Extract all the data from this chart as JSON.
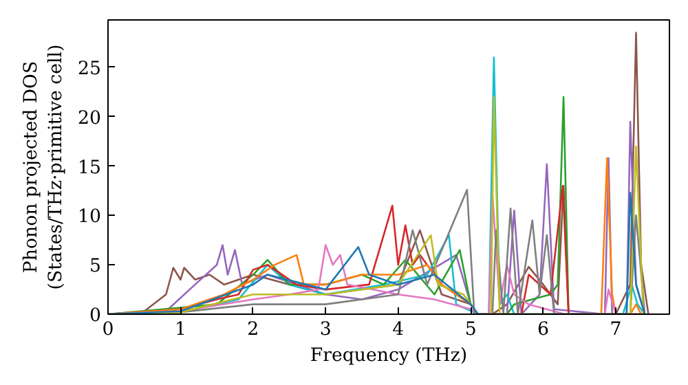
{
  "chart_data": {
    "type": "line",
    "xlabel": "Frequency (THz)",
    "ylabel": "Phonon projected DOS\n(States/THz·primitive cell)",
    "xlim": [
      0,
      7.74
    ],
    "ylim": [
      0,
      29.8
    ],
    "xticks": [
      0,
      1,
      2,
      3,
      4,
      5,
      6,
      7
    ],
    "yticks": [
      0,
      5,
      10,
      15,
      20,
      25
    ],
    "grid": false,
    "series": [
      {
        "color": "#8c564b",
        "x": [
          0,
          0.5,
          0.8,
          0.9,
          1.0,
          1.05,
          1.2,
          1.4,
          1.6,
          2,
          3,
          4,
          4.3,
          4.6,
          5,
          5.1,
          5.3,
          5.5,
          5.8,
          6.0,
          6.2,
          6.28,
          6.35,
          7.0,
          7.2,
          7.28,
          7.35,
          7.45
        ],
        "values": [
          0,
          0.3,
          2,
          4.7,
          3.5,
          4.7,
          3.5,
          4,
          3,
          4,
          2,
          3,
          8.5,
          2,
          1,
          0,
          0,
          1,
          4.8,
          3,
          1,
          13,
          0,
          0,
          3,
          28.5,
          5,
          0
        ]
      },
      {
        "color": "#9467bd",
        "x": [
          0,
          0.8,
          1.2,
          1.5,
          1.58,
          1.65,
          1.75,
          1.85,
          2.2,
          3,
          3.5,
          4,
          4.8,
          5.0,
          5.1,
          5.5,
          5.6,
          5.7,
          5.95,
          6.05,
          6.15,
          6.85,
          6.9,
          6.95,
          7.15,
          7.2,
          7.28,
          7.4
        ],
        "values": [
          0,
          0.3,
          3,
          5,
          7,
          4,
          6.5,
          3,
          4,
          2,
          1.5,
          2.5,
          6,
          1,
          0,
          0,
          10.5,
          0,
          2,
          15.2,
          0.5,
          0,
          15.8,
          0,
          0,
          19.5,
          3,
          0
        ]
      },
      {
        "color": "#17becf",
        "x": [
          0,
          1,
          1.8,
          2.2,
          2.5,
          3,
          3.8,
          4.4,
          4.7,
          4.8,
          5.1,
          5.25,
          5.32,
          5.4,
          5.5,
          5.6,
          7.1,
          7.22,
          7.3,
          7.4
        ],
        "values": [
          0,
          0.2,
          1.5,
          5,
          3,
          2,
          3,
          4,
          8,
          1,
          0,
          0,
          26,
          1,
          2,
          0,
          0,
          3,
          1,
          0
        ]
      },
      {
        "color": "#2ca02c",
        "x": [
          0,
          1.5,
          2,
          2.2,
          2.5,
          3,
          3.5,
          3.8,
          4.1,
          4.5,
          4.85,
          5.0,
          5.1,
          5.5,
          5.6,
          6.1,
          6.2,
          6.28,
          6.35,
          7.4
        ],
        "values": [
          0,
          1,
          4,
          5.5,
          3,
          3,
          4,
          3,
          5.5,
          2,
          6.5,
          1,
          0,
          0,
          1,
          2,
          3,
          22,
          0,
          0
        ]
      },
      {
        "color": "#d62728",
        "x": [
          0,
          1,
          1.5,
          1.8,
          2,
          2.2,
          2.6,
          3,
          3.6,
          3.92,
          4.0,
          4.1,
          4.2,
          4.3,
          4.6,
          5.0,
          5.1,
          5.7,
          5.8,
          6.1,
          6.27,
          6.35,
          7.4
        ],
        "values": [
          0,
          0.5,
          1.5,
          2,
          4.5,
          5,
          3,
          2.5,
          3,
          11,
          5,
          9,
          5,
          6,
          3,
          1,
          0,
          0,
          4,
          2,
          13,
          0,
          0
        ]
      },
      {
        "color": "#ff7f0e",
        "x": [
          0,
          1,
          1.6,
          2.0,
          2.3,
          2.6,
          2.7,
          3,
          3.5,
          4.0,
          4.4,
          4.6,
          5.0,
          5.1,
          6.8,
          6.88,
          6.95,
          7.0,
          7.2,
          7.28,
          7.35
        ],
        "values": [
          0,
          0.5,
          2,
          3.5,
          5,
          6,
          3,
          3,
          4,
          4,
          5,
          3,
          1,
          0,
          0,
          15.8,
          2,
          0,
          0,
          1,
          0
        ]
      },
      {
        "color": "#e377c2",
        "x": [
          0,
          1,
          2,
          2.5,
          2.9,
          3.0,
          3.1,
          3.2,
          3.3,
          4,
          4.5,
          5.0,
          5.1,
          5.25,
          5.3,
          5.4,
          5.5,
          5.6,
          5.8,
          6.3,
          6.85,
          6.9,
          7.0,
          7.4
        ],
        "values": [
          0,
          0.3,
          1.5,
          2,
          2.5,
          7,
          5,
          6,
          3,
          2,
          1.5,
          0.5,
          0,
          0,
          12.2,
          1,
          5,
          2,
          1,
          0,
          0,
          2.5,
          0,
          0
        ]
      },
      {
        "color": "#7f7f7f",
        "x": [
          0,
          1,
          2,
          3,
          4,
          4.2,
          4.4,
          4.95,
          5.05,
          5.3,
          5.35,
          5.45,
          5.55,
          5.65,
          5.85,
          5.95,
          6.05,
          6.15,
          7.2,
          7.28,
          7.4
        ],
        "values": [
          0,
          0.2,
          1,
          1,
          2,
          8.5,
          3,
          12.6,
          0,
          0,
          8.5,
          0,
          10.7,
          0,
          9.5,
          2,
          8,
          0,
          0,
          10,
          0
        ]
      },
      {
        "color": "#bcbd22",
        "x": [
          0,
          1,
          2,
          3,
          4,
          4.45,
          4.55,
          4.9,
          5.1,
          5.28,
          5.32,
          5.4,
          7.2,
          7.28,
          7.38
        ],
        "values": [
          0,
          0.2,
          2,
          2,
          3,
          8,
          3,
          2,
          0,
          0,
          22,
          0,
          0,
          17,
          0
        ]
      },
      {
        "color": "#1f77b4",
        "x": [
          0,
          1,
          2,
          2.2,
          3,
          3.45,
          3.6,
          4,
          4.5,
          5.0,
          5.1,
          7.15,
          7.2,
          7.28,
          7.4
        ],
        "values": [
          0,
          0.3,
          3,
          4,
          2.5,
          6.8,
          4,
          3,
          4,
          1,
          0,
          0,
          12.3,
          3,
          0
        ]
      }
    ]
  }
}
